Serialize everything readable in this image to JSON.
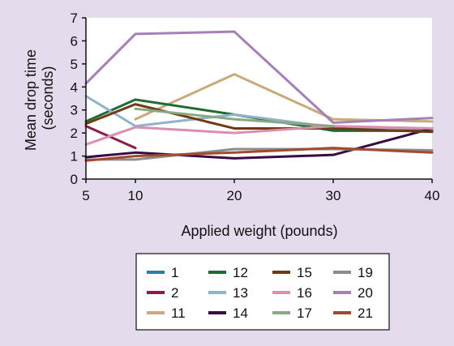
{
  "chart_data": {
    "type": "line",
    "xlabel": "Applied weight (pounds)",
    "ylabel_lines": [
      "Mean drop time",
      "(seconds)"
    ],
    "x": [
      5,
      10,
      20,
      30,
      40
    ],
    "x_ticks": [
      "5",
      "10",
      "20",
      "30",
      "40"
    ],
    "y_ticks": [
      "0",
      "1",
      "2",
      "3",
      "4",
      "5",
      "6",
      "7"
    ],
    "xlim": [
      5,
      40
    ],
    "ylim": [
      0,
      7
    ],
    "grid": false,
    "legend_position": "bottom",
    "series": [
      {
        "name": "1",
        "color": "#2a7fa8",
        "points": [
          [
            30,
            2.1
          ],
          [
            40,
            2.1
          ]
        ]
      },
      {
        "name": "2",
        "color": "#8c1a4e",
        "points": [
          [
            5,
            2.3
          ],
          [
            10,
            1.35
          ]
        ]
      },
      {
        "name": "11",
        "color": "#c8ab78",
        "points": [
          [
            10,
            2.6
          ],
          [
            20,
            4.55
          ],
          [
            30,
            2.6
          ],
          [
            40,
            2.5
          ]
        ]
      },
      {
        "name": "12",
        "color": "#1f6b34",
        "points": [
          [
            5,
            2.5
          ],
          [
            10,
            3.45
          ],
          [
            20,
            2.8
          ],
          [
            30,
            2.1
          ],
          [
            40,
            2.1
          ]
        ]
      },
      {
        "name": "13",
        "color": "#8fb3cc",
        "points": [
          [
            5,
            3.6
          ],
          [
            10,
            2.3
          ],
          [
            20,
            2.8
          ],
          [
            30,
            2.25
          ],
          [
            40,
            2.2
          ]
        ]
      },
      {
        "name": "14",
        "color": "#3a0a44",
        "points": [
          [
            5,
            0.95
          ],
          [
            10,
            1.15
          ],
          [
            20,
            0.9
          ],
          [
            30,
            1.05
          ],
          [
            40,
            2.2
          ]
        ]
      },
      {
        "name": "15",
        "color": "#6e3b14",
        "points": [
          [
            5,
            2.4
          ],
          [
            10,
            3.25
          ],
          [
            20,
            2.2
          ],
          [
            30,
            2.2
          ],
          [
            40,
            2.05
          ]
        ]
      },
      {
        "name": "16",
        "color": "#d98fb2",
        "points": [
          [
            5,
            1.5
          ],
          [
            10,
            2.25
          ],
          [
            20,
            2.0
          ],
          [
            30,
            2.3
          ],
          [
            40,
            2.2
          ]
        ]
      },
      {
        "name": "17",
        "color": "#8aa882",
        "points": [
          [
            10,
            3.05
          ],
          [
            20,
            2.6
          ],
          [
            30,
            2.3
          ]
        ]
      },
      {
        "name": "19",
        "color": "#8c8c8c",
        "points": [
          [
            5,
            0.85
          ],
          [
            10,
            0.85
          ],
          [
            20,
            1.3
          ],
          [
            30,
            1.3
          ],
          [
            40,
            1.25
          ]
        ]
      },
      {
        "name": "20",
        "color": "#a67fb8",
        "points": [
          [
            5,
            4.15
          ],
          [
            10,
            6.3
          ],
          [
            20,
            6.4
          ],
          [
            30,
            2.45
          ],
          [
            40,
            2.65
          ]
        ]
      },
      {
        "name": "21",
        "color": "#a34a2e",
        "points": [
          [
            5,
            0.8
          ],
          [
            10,
            1.0
          ],
          [
            20,
            1.15
          ],
          [
            30,
            1.35
          ],
          [
            40,
            1.15
          ]
        ]
      }
    ]
  }
}
